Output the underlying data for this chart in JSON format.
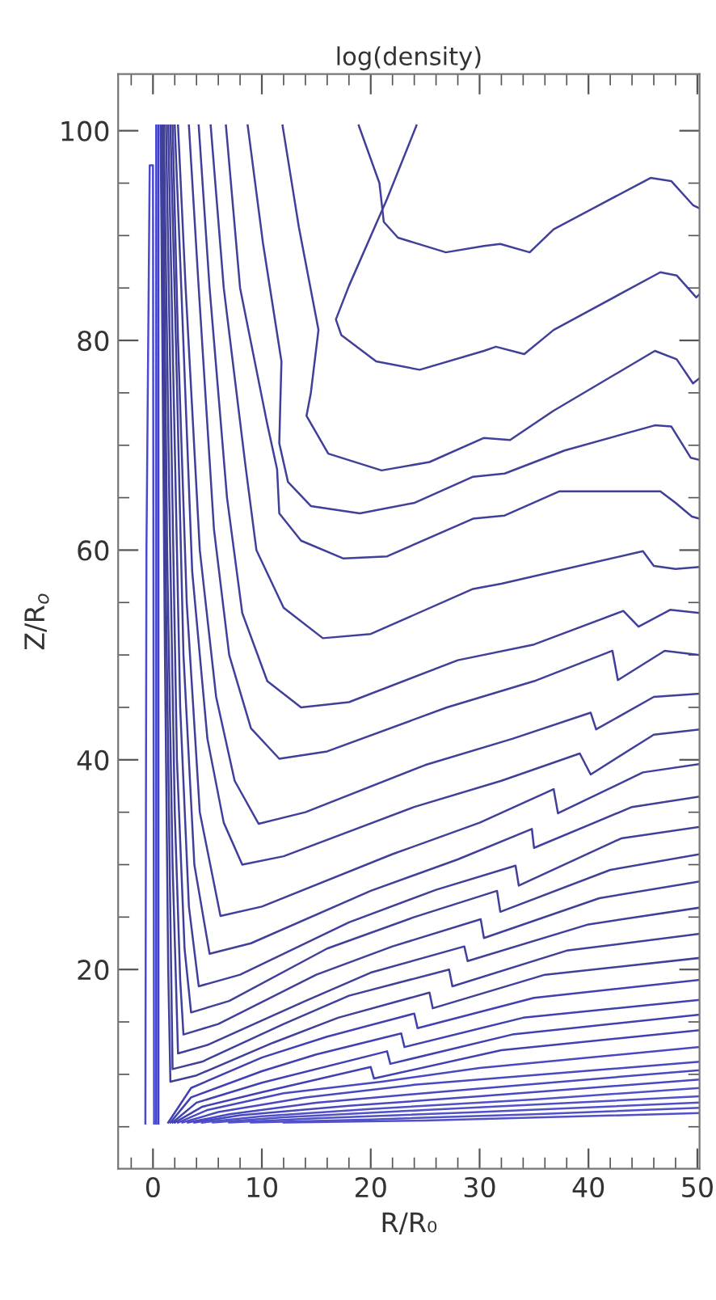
{
  "chart_data": {
    "type": "line",
    "title": "log(density)",
    "xlabel": "R/R₀",
    "ylabel": "Z/R$_{o}$",
    "xlim": [
      -3.2,
      50.2
    ],
    "ylim": [
      1,
      105.4
    ],
    "xticks": [
      0,
      {
        "value": 2,
        "label": null
      },
      {
        "value": 4,
        "label": null
      },
      {
        "value": 6,
        "label": null
      },
      {
        "value": 8,
        "label": null
      },
      10,
      {
        "value": 12,
        "label": null
      },
      {
        "value": 14,
        "label": null
      },
      {
        "value": 16,
        "label": null
      },
      {
        "value": 18,
        "label": null
      },
      20,
      {
        "value": 22,
        "label": null
      },
      {
        "value": 24,
        "label": null
      },
      {
        "value": 26,
        "label": null
      },
      {
        "value": 28,
        "label": null
      },
      30,
      {
        "value": 32,
        "label": null
      },
      {
        "value": 34,
        "label": null
      },
      {
        "value": 36,
        "label": null
      },
      {
        "value": 38,
        "label": null
      },
      40,
      {
        "value": 42,
        "label": null
      },
      {
        "value": 44,
        "label": null
      },
      {
        "value": 46,
        "label": null
      },
      {
        "value": 48,
        "label": null
      },
      50,
      {
        "value": -2,
        "label": null
      }
    ],
    "yticks": [
      {
        "value": 5,
        "label": null
      },
      {
        "value": 10,
        "label": null
      },
      {
        "value": 15,
        "label": null
      },
      20,
      {
        "value": 25,
        "label": null
      },
      {
        "value": 30,
        "label": null
      },
      {
        "value": 35,
        "label": null
      },
      40,
      {
        "value": 45,
        "label": null
      },
      {
        "value": 50,
        "label": null
      },
      {
        "value": 55,
        "label": null
      },
      60,
      {
        "value": 65,
        "label": null
      },
      {
        "value": 70,
        "label": null
      },
      {
        "value": 75,
        "label": null
      },
      80,
      {
        "value": 85,
        "label": null
      },
      {
        "value": 90,
        "label": null
      },
      {
        "value": 95,
        "label": null
      },
      100
    ],
    "grid": false,
    "line_style": "solid",
    "series": [
      {
        "color": "#40409a",
        "x": [
          18.9,
          20.8,
          21.2,
          22.5,
          26.9,
          30.4,
          31.9,
          34.6,
          36.8,
          45.7,
          47.6,
          49.6,
          50.2
        ],
        "values": [
          100.5,
          95.0,
          91.3,
          89.8,
          88.4,
          89.0,
          89.2,
          88.4,
          90.6,
          95.5,
          95.2,
          92.9,
          92.6
        ]
      },
      {
        "color": "#40409a",
        "x": [
          24.2,
          21.5,
          18.0,
          16.8,
          17.3,
          20.5,
          24.5,
          30.4,
          31.5,
          34.1,
          36.8,
          46.6,
          48.1,
          49.9,
          50.2
        ],
        "values": [
          100.5,
          93.5,
          85.2,
          82.0,
          80.5,
          78.0,
          77.2,
          79.0,
          79.4,
          78.7,
          81.0,
          86.5,
          86.2,
          84.1,
          84.4
        ]
      },
      {
        "color": "#40409a",
        "x": [
          11.9,
          13.4,
          15.2,
          14.5,
          14.1,
          16.1,
          21.0,
          25.4,
          30.4,
          32.8,
          36.8,
          46.1,
          48.1,
          49.6,
          50.2
        ],
        "values": [
          100.5,
          90.8,
          81.0,
          75.0,
          72.8,
          69.2,
          67.6,
          68.4,
          70.7,
          70.5,
          73.3,
          79.0,
          78.2,
          75.9,
          76.4
        ]
      },
      {
        "color": "#40409a",
        "x": [
          8.7,
          10.1,
          11.8,
          11.6,
          12.4,
          14.5,
          19.0,
          24.0,
          29.4,
          32.3,
          37.8,
          46.1,
          47.6,
          49.4,
          50.2
        ],
        "values": [
          100.5,
          89.3,
          78.0,
          70.2,
          66.5,
          64.2,
          63.5,
          64.5,
          67.0,
          67.3,
          69.5,
          71.9,
          71.8,
          68.8,
          68.6
        ]
      },
      {
        "color": "#40409a",
        "x": [
          6.7,
          8.0,
          10.5,
          11.4,
          11.6,
          13.6,
          17.5,
          21.5,
          29.4,
          32.3,
          37.3,
          46.6,
          48.0,
          49.5,
          50.2
        ],
        "values": [
          100.5,
          85,
          72,
          67.7,
          63.5,
          60.9,
          59.2,
          59.4,
          63.0,
          63.3,
          65.6,
          65.6,
          64.5,
          63.2,
          63.0
        ]
      },
      {
        "color": "#40409a",
        "x": [
          5.3,
          6.5,
          8.5,
          9.5,
          12.0,
          15.6,
          20.0,
          29.4,
          32.0,
          45.0,
          46.0,
          48.0,
          50.2
        ],
        "values": [
          100.5,
          85,
          68,
          60,
          54.5,
          51.6,
          52.0,
          56.3,
          56.8,
          59.9,
          58.5,
          58.2,
          58.4
        ]
      },
      {
        "color": "#40409a",
        "x": [
          4.2,
          5.2,
          6.8,
          8.2,
          10.5,
          13.6,
          18.0,
          28.0,
          35.0,
          43.2,
          44.6,
          47.5,
          50.2
        ],
        "values": [
          100.5,
          85,
          65,
          54,
          47.5,
          45.0,
          45.5,
          49.5,
          51.0,
          54.2,
          52.7,
          54.3,
          54.0
        ]
      },
      {
        "color": "#40409a",
        "x": [
          3.3,
          4.2,
          5.6,
          7.0,
          9.0,
          11.6,
          16.0,
          27.0,
          35.0,
          42.2,
          42.7,
          47.0,
          50.2
        ],
        "values": [
          100.5,
          85,
          62,
          50,
          43,
          40.1,
          40.8,
          45.0,
          47.5,
          50.4,
          47.6,
          50.4,
          50.0
        ]
      },
      {
        "color": "#40409a",
        "x": [
          2.3,
          3.0,
          4.3,
          5.8,
          7.5,
          9.7,
          14.0,
          25.0,
          33.0,
          40.2,
          40.7,
          46.0,
          50.2
        ],
        "values": [
          100.5,
          85,
          60,
          46,
          38,
          33.9,
          35.0,
          39.5,
          42.0,
          44.5,
          42.9,
          46.0,
          46.3
        ]
      },
      {
        "color": "#40409a",
        "x": [
          2.0,
          2.6,
          3.6,
          5.0,
          6.5,
          8.2,
          12.0,
          24.0,
          32.0,
          39.2,
          40.2,
          46.0,
          50.2
        ],
        "values": [
          100.5,
          85,
          58,
          42,
          34,
          30.0,
          30.8,
          35.5,
          38.0,
          40.6,
          38.6,
          42.4,
          42.9
        ]
      },
      {
        "color": "#40409a",
        "x": [
          1.8,
          2.3,
          3.1,
          4.3,
          6.2,
          10.0,
          22.0,
          30.0,
          36.8,
          37.2,
          45.0,
          50.2
        ],
        "values": [
          100.5,
          80,
          55,
          35,
          25.1,
          26.0,
          31.0,
          34.0,
          37.2,
          34.9,
          38.8,
          39.6
        ]
      },
      {
        "color": "#40409a",
        "x": [
          1.6,
          2.1,
          2.8,
          3.8,
          5.2,
          9.0,
          20.0,
          28.0,
          34.8,
          35.0,
          44.0,
          50.2
        ],
        "values": [
          100.5,
          80,
          50,
          30,
          21.5,
          22.5,
          27.5,
          30.5,
          33.4,
          31.6,
          35.5,
          36.5
        ]
      },
      {
        "color": "#40409a",
        "x": [
          1.4,
          1.9,
          2.5,
          3.3,
          4.2,
          8.0,
          18.0,
          26.0,
          33.3,
          33.6,
          43.0,
          50.2
        ],
        "values": [
          100.5,
          75,
          45,
          26,
          18.4,
          19.5,
          24.5,
          27.6,
          29.9,
          28.0,
          32.5,
          33.6
        ]
      },
      {
        "color": "#40409a",
        "x": [
          1.2,
          1.7,
          2.2,
          2.9,
          3.5,
          7.0,
          16.0,
          24.0,
          31.6,
          31.9,
          42.0,
          50.2
        ],
        "values": [
          100.5,
          70,
          40,
          22,
          15.9,
          17.0,
          22.0,
          25.0,
          27.5,
          25.5,
          29.5,
          31.0
        ]
      },
      {
        "color": "#40409a",
        "x": [
          1.0,
          1.5,
          2.0,
          2.5,
          2.8,
          6.0,
          15.0,
          22.0,
          30.1,
          30.4,
          41.0,
          50.2
        ],
        "values": [
          100.5,
          65,
          35,
          19,
          13.8,
          14.8,
          19.5,
          22.2,
          24.8,
          23.0,
          26.8,
          28.4
        ]
      },
      {
        "color": "#40409a",
        "x": [
          0.9,
          1.3,
          1.8,
          2.3,
          5.0,
          14.0,
          20.0,
          28.6,
          28.9,
          40.0,
          50.2
        ],
        "values": [
          100.5,
          60,
          30,
          12.0,
          12.8,
          17.0,
          19.7,
          22.2,
          20.8,
          24.3,
          25.9
        ]
      },
      {
        "color": "#40409a",
        "x": [
          0.8,
          1.2,
          1.6,
          1.8,
          4.5,
          12.0,
          18.0,
          27.2,
          27.5,
          38.0,
          50.2
        ],
        "values": [
          100.5,
          55,
          25,
          10.5,
          11.2,
          14.8,
          17.5,
          20.0,
          18.4,
          21.8,
          23.4
        ]
      },
      {
        "color": "#40409a",
        "x": [
          0.7,
          1.1,
          1.4,
          1.6,
          4.0,
          11.0,
          17.0,
          25.4,
          25.7,
          36.0,
          50.2
        ],
        "values": [
          100.5,
          50,
          20,
          9.3,
          9.9,
          13.0,
          15.4,
          17.8,
          16.3,
          19.5,
          21.1
        ]
      },
      {
        "color": "#4040b0",
        "x": [
          1.4,
          3.5,
          10.0,
          16.0,
          24.0,
          24.3,
          35.0,
          50.2
        ],
        "values": [
          5.4,
          8.7,
          11.6,
          13.6,
          15.8,
          14.4,
          17.3,
          19.0
        ]
      },
      {
        "color": "#4040b0",
        "x": [
          1.6,
          3.5,
          10.0,
          15.0,
          22.8,
          23.1,
          34.0,
          50.2
        ],
        "values": [
          5.4,
          7.8,
          10.3,
          11.9,
          13.9,
          12.6,
          15.4,
          17.1
        ]
      },
      {
        "color": "#4040b0",
        "x": [
          1.8,
          4.0,
          10.0,
          21.5,
          21.8,
          33.0,
          50.2
        ],
        "values": [
          5.4,
          7.3,
          9.2,
          12.2,
          11.0,
          13.8,
          15.7
        ]
      },
      {
        "color": "#4040b0",
        "x": [
          2.0,
          4.5,
          10.0,
          20.0,
          20.3,
          32.0,
          50.2
        ],
        "values": [
          5.4,
          6.9,
          8.3,
          10.7,
          9.6,
          12.3,
          14.2
        ]
      },
      {
        "color": "#4848c0",
        "x": [
          2.3,
          5.0,
          12.0,
          21.0,
          30.0,
          50.2
        ],
        "values": [
          5.4,
          6.6,
          8.2,
          9.3,
          10.6,
          12.6
        ]
      },
      {
        "color": "#4848c0",
        "x": [
          2.7,
          6.0,
          14.0,
          24.0,
          50.2
        ],
        "values": [
          5.4,
          6.4,
          7.8,
          9.0,
          11.2
        ]
      },
      {
        "color": "#4848c0",
        "x": [
          3.2,
          7.0,
          15.0,
          26.0,
          50.2
        ],
        "values": [
          5.4,
          6.2,
          7.3,
          8.3,
          10.4
        ]
      },
      {
        "color": "#4848c0",
        "x": [
          3.8,
          8.0,
          18.0,
          30.0,
          50.2
        ],
        "values": [
          5.4,
          6.1,
          7.0,
          7.9,
          9.5
        ]
      },
      {
        "color": "#5050c8",
        "x": [
          4.5,
          10.0,
          20.0,
          35.0,
          50.2
        ],
        "values": [
          5.4,
          6.0,
          6.7,
          7.6,
          8.7
        ]
      },
      {
        "color": "#5050c8",
        "x": [
          5.5,
          12.0,
          25.0,
          50.2
        ],
        "values": [
          5.4,
          5.9,
          6.6,
          7.9
        ]
      },
      {
        "color": "#5050c8",
        "x": [
          7.0,
          15.0,
          30.0,
          50.2
        ],
        "values": [
          5.4,
          5.8,
          6.4,
          7.3
        ]
      },
      {
        "color": "#5050c8",
        "x": [
          9.0,
          20.0,
          35.0,
          50.2
        ],
        "values": [
          5.4,
          5.7,
          6.2,
          6.8
        ]
      },
      {
        "color": "#5050c8",
        "x": [
          12.0,
          25.0,
          50.2
        ],
        "values": [
          5.4,
          5.6,
          6.3
        ]
      },
      {
        "color": "#3c3cd8",
        "x": [
          0.3,
          0.3
        ],
        "values": [
          5.3,
          100.5
        ]
      },
      {
        "color": "#3c3cd8",
        "x": [
          0.5,
          0.5
        ],
        "values": [
          5.3,
          100.5
        ]
      },
      {
        "color": "#4a4ad0",
        "x": [
          -0.7,
          -0.6,
          -0.3,
          0.0,
          0.1
        ],
        "values": [
          5.3,
          60,
          96.7,
          96.7,
          5.3
        ]
      }
    ]
  }
}
